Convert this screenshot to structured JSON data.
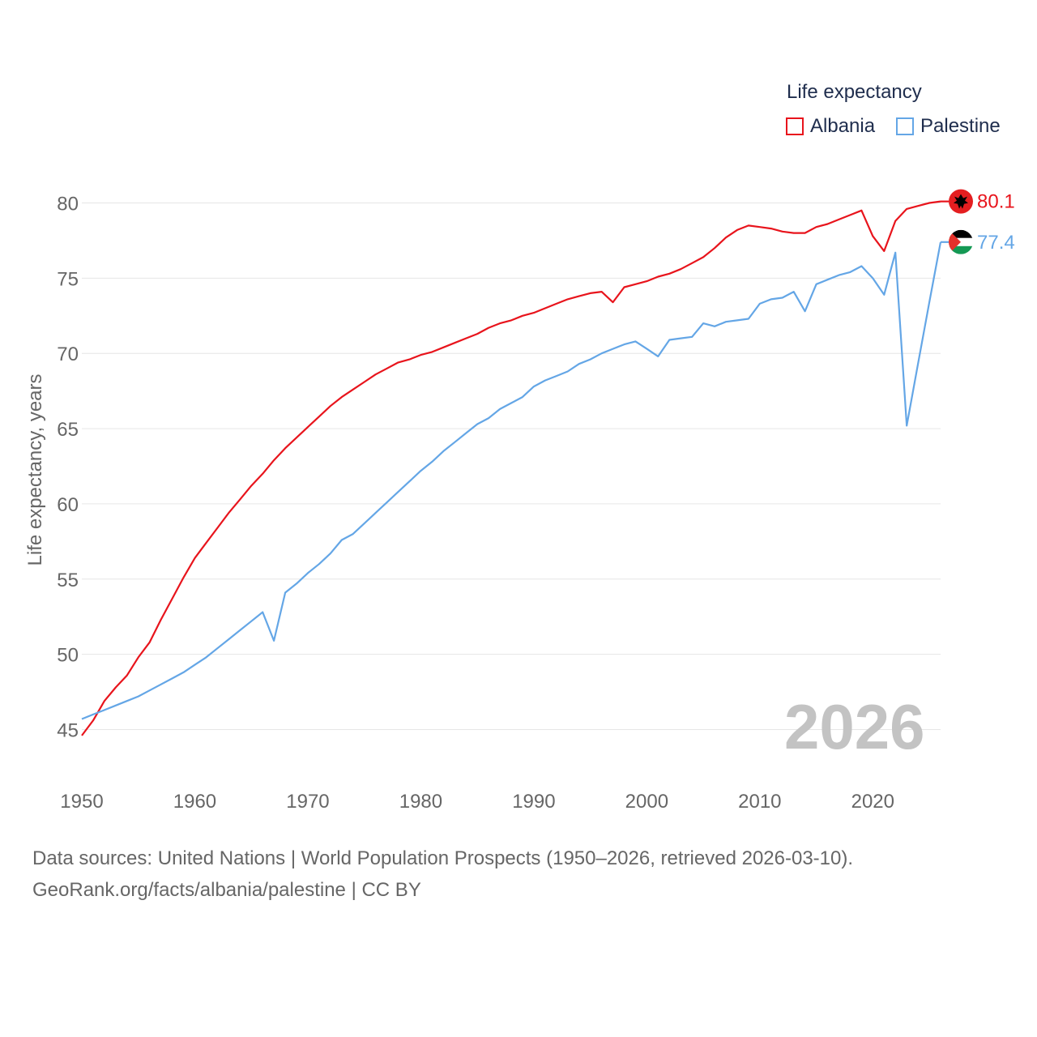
{
  "legend": {
    "title": "Life expectancy",
    "items": [
      {
        "label": "Albania",
        "color": "#e8141c"
      },
      {
        "label": "Palestine",
        "color": "#64a6e6"
      }
    ]
  },
  "year_watermark": "2026",
  "footer": {
    "line1": "Data sources: United Nations | World Population Prospects (1950–2026, retrieved 2026-03-10).",
    "line2": "GeoRank.org/facts/albania/palestine | CC BY"
  },
  "chart_data": {
    "type": "line",
    "title": "Life expectancy",
    "xlabel": "",
    "ylabel": "Life expectancy, years",
    "xlim": [
      1950,
      2026
    ],
    "ylim": [
      43,
      82
    ],
    "x_ticks": [
      1950,
      1960,
      1970,
      1980,
      1990,
      2000,
      2010,
      2020
    ],
    "y_ticks": [
      45,
      50,
      55,
      60,
      65,
      70,
      75,
      80
    ],
    "grid": true,
    "legend_position": "top-right",
    "x": [
      1950,
      1951,
      1952,
      1953,
      1954,
      1955,
      1956,
      1957,
      1958,
      1959,
      1960,
      1961,
      1962,
      1963,
      1964,
      1965,
      1966,
      1967,
      1968,
      1969,
      1970,
      1971,
      1972,
      1973,
      1974,
      1975,
      1976,
      1977,
      1978,
      1979,
      1980,
      1981,
      1982,
      1983,
      1984,
      1985,
      1986,
      1987,
      1988,
      1989,
      1990,
      1991,
      1992,
      1993,
      1994,
      1995,
      1996,
      1997,
      1998,
      1999,
      2000,
      2001,
      2002,
      2003,
      2004,
      2005,
      2006,
      2007,
      2008,
      2009,
      2010,
      2011,
      2012,
      2013,
      2014,
      2015,
      2016,
      2017,
      2018,
      2019,
      2020,
      2021,
      2022,
      2023,
      2024,
      2025,
      2026
    ],
    "series": [
      {
        "name": "Albania",
        "color": "#e8141c",
        "end_label": "80.1",
        "values": [
          44.6,
          45.6,
          46.9,
          47.8,
          48.6,
          49.8,
          50.8,
          52.3,
          53.7,
          55.1,
          56.4,
          57.4,
          58.4,
          59.4,
          60.3,
          61.2,
          62.0,
          62.9,
          63.7,
          64.4,
          65.1,
          65.8,
          66.5,
          67.1,
          67.6,
          68.1,
          68.6,
          69.0,
          69.4,
          69.6,
          69.9,
          70.1,
          70.4,
          70.7,
          71.0,
          71.3,
          71.7,
          72.0,
          72.2,
          72.5,
          72.7,
          73.0,
          73.3,
          73.6,
          73.8,
          74.0,
          74.1,
          73.4,
          74.4,
          74.6,
          74.8,
          75.1,
          75.3,
          75.6,
          76.0,
          76.4,
          77.0,
          77.7,
          78.2,
          78.5,
          78.4,
          78.3,
          78.1,
          78.0,
          78.0,
          78.4,
          78.6,
          78.9,
          79.2,
          79.5,
          77.8,
          76.8,
          78.8,
          79.6,
          79.8,
          80.0,
          80.1
        ]
      },
      {
        "name": "Palestine",
        "color": "#64a6e6",
        "end_label": "77.4",
        "values": [
          45.7,
          46.0,
          46.3,
          46.6,
          46.9,
          47.2,
          47.6,
          48.0,
          48.4,
          48.8,
          49.3,
          49.8,
          50.4,
          51.0,
          51.6,
          52.2,
          52.8,
          50.9,
          54.1,
          54.7,
          55.4,
          56.0,
          56.7,
          57.6,
          58.0,
          58.7,
          59.4,
          60.1,
          60.8,
          61.5,
          62.2,
          62.8,
          63.5,
          64.1,
          64.7,
          65.3,
          65.7,
          66.3,
          66.7,
          67.1,
          67.8,
          68.2,
          68.5,
          68.8,
          69.3,
          69.6,
          70.0,
          70.3,
          70.6,
          70.8,
          70.3,
          69.8,
          70.9,
          71.0,
          71.1,
          72.0,
          71.8,
          72.1,
          72.2,
          72.3,
          73.3,
          73.6,
          73.7,
          74.1,
          72.8,
          74.6,
          74.9,
          75.2,
          75.4,
          75.8,
          75.0,
          73.9,
          76.7,
          65.2,
          69.3,
          73.4,
          77.4
        ]
      }
    ]
  }
}
